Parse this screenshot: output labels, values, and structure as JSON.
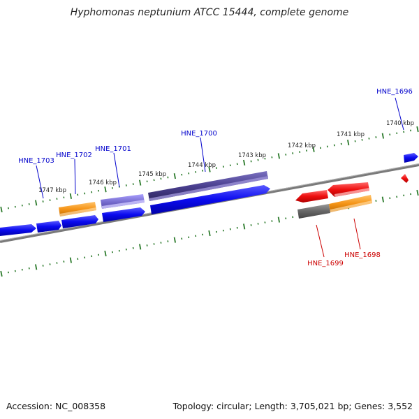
{
  "title": "Hyphomonas neptunium ATCC 15444, complete genome",
  "footer": {
    "accession": "Accession: NC_008358",
    "summary": "Topology: circular; Length: 3,705,021 bp; Genes: 3,552"
  },
  "ruler_labels": [
    "1740 kbp",
    "1741 kbp",
    "1742 kbp",
    "1743 kbp",
    "1744 kbp",
    "1745 kbp",
    "1746 kbp",
    "1747 kbp"
  ],
  "gene_labels": [
    {
      "text": "HNE_1696",
      "color": "#0000cc"
    },
    {
      "text": "HNE_1700",
      "color": "#0000cc"
    },
    {
      "text": "HNE_1701",
      "color": "#0000cc"
    },
    {
      "text": "HNE_1702",
      "color": "#0000cc"
    },
    {
      "text": "HNE_1703",
      "color": "#0000cc"
    },
    {
      "text": "HNE_1698",
      "color": "#cc0000"
    },
    {
      "text": "HNE_1699",
      "color": "#cc0000"
    }
  ],
  "colors": {
    "forward_cds": "#0a0aee",
    "reverse_cds": "#ee0f0f",
    "orange_feature": "#f59416",
    "purple_feature": "#4a3f8f",
    "lavender_feature": "#7a6fd1",
    "gray_feature": "#666666",
    "backbone": "#7a7a7a",
    "ticks": "#2b7a2b"
  }
}
